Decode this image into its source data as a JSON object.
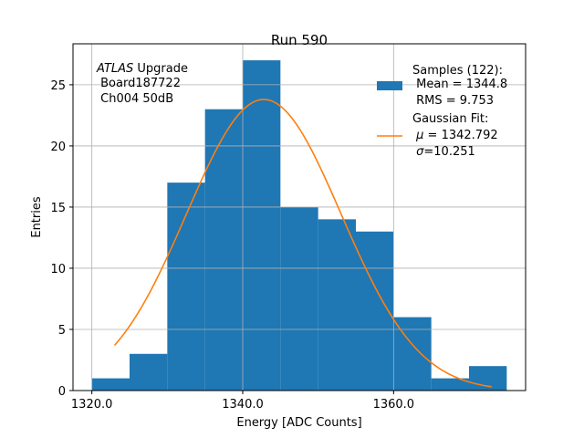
{
  "chart_data": {
    "type": "bar",
    "title": "Run 590",
    "xlabel": "Energy [ADC Counts]",
    "ylabel": "Entries",
    "xlim": [
      1317.5,
      1377.5
    ],
    "ylim": [
      0,
      28.35
    ],
    "xticks": [
      1320,
      1340,
      1360
    ],
    "xtick_labels": [
      "1320.0",
      "1340.0",
      "1360.0"
    ],
    "yticks": [
      0,
      5,
      10,
      15,
      20,
      25
    ],
    "ytick_labels": [
      "0",
      "5",
      "10",
      "15",
      "20",
      "25"
    ],
    "grid": true,
    "bin_edges": [
      1320,
      1325,
      1330,
      1335,
      1340,
      1345,
      1350,
      1355,
      1360,
      1365,
      1370,
      1375
    ],
    "values": [
      1,
      3,
      17,
      23,
      27,
      15,
      14,
      13,
      6,
      1,
      2
    ],
    "bar_color": "#1f77b4",
    "fit": {
      "type": "gaussian",
      "mu": 1342.792,
      "sigma": 10.251,
      "amplitude": 23.8,
      "x_range": [
        1323,
        1373
      ],
      "color": "#ff7f0e"
    },
    "annotation": {
      "line1_italic": "ATLAS",
      "line1_rest": " Upgrade",
      "line2": " Board187722",
      "line3": " Ch004 50dB"
    },
    "legend": {
      "placement": "top-right",
      "samples_title": "Samples (122):",
      "samples_mean": " Mean = 1344.8",
      "samples_rms": " RMS = 9.753",
      "fit_title": "Gaussian Fit:",
      "fit_mu_symbol": "μ",
      "fit_mu_value": " = 1342.792",
      "fit_sigma_symbol": "σ",
      "fit_sigma_value": "=10.251"
    }
  }
}
